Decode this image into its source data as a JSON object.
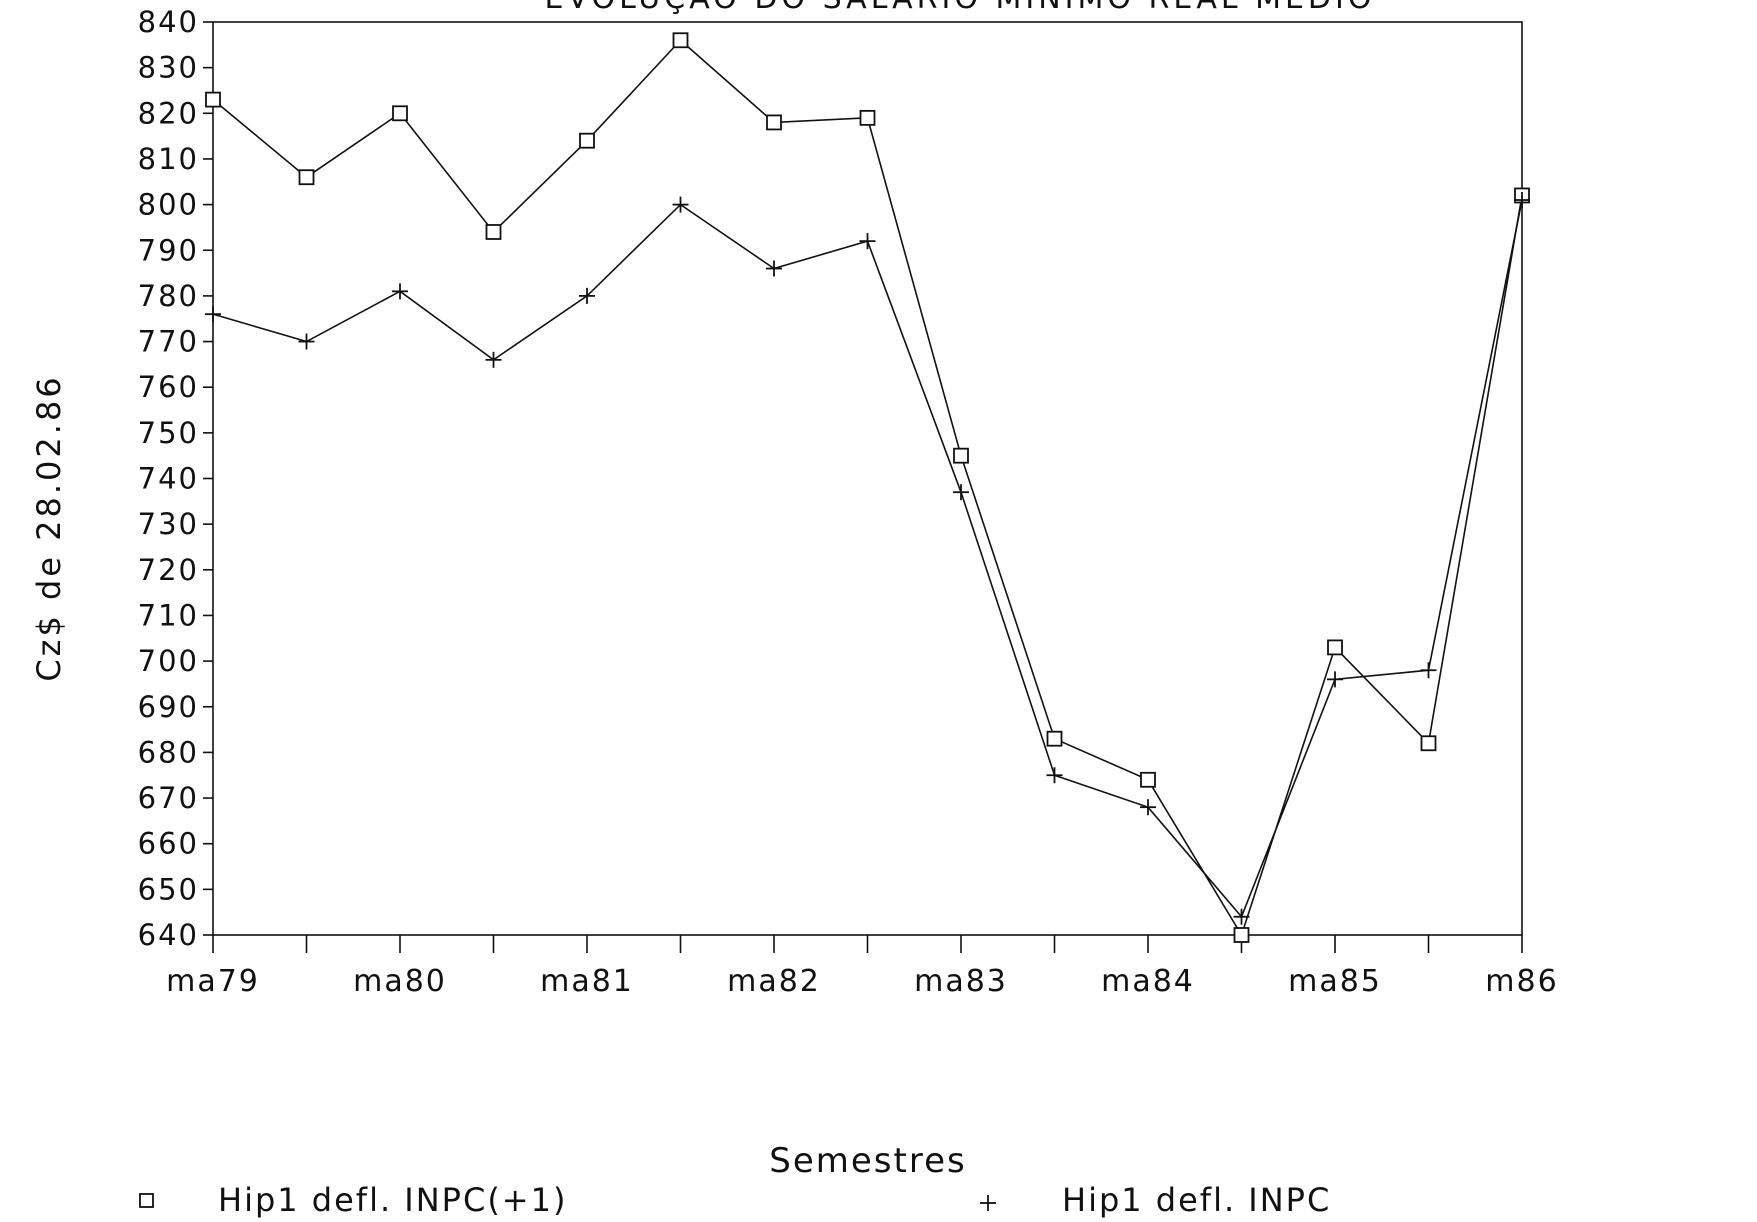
{
  "chart_data": {
    "type": "line",
    "title": "EVOLUÇÃO DO SALÁRIO MÍNIMO REAL MÉDIO",
    "xlabel": "Semestres",
    "ylabel": "Cz$ de 28.02.86",
    "ylim": [
      640,
      840
    ],
    "yticks": [
      640,
      650,
      660,
      670,
      680,
      690,
      700,
      710,
      720,
      730,
      740,
      750,
      760,
      770,
      780,
      790,
      800,
      810,
      820,
      830,
      840
    ],
    "x_tick_labels": [
      "ma79",
      "",
      "ma80",
      "",
      "ma81",
      "",
      "ma82",
      "",
      "ma83",
      "",
      "ma84",
      "",
      "ma85",
      "",
      "m86"
    ],
    "grid": false,
    "legend_position": "bottom",
    "series": [
      {
        "name": "Hip1 defl. INPC(+1)",
        "marker": "square",
        "values": [
          823,
          806,
          820,
          794,
          814,
          836,
          818,
          819,
          745,
          683,
          674,
          640,
          703,
          682,
          802
        ]
      },
      {
        "name": "Hip1 defl. INPC",
        "marker": "plus",
        "values": [
          776,
          770,
          781,
          766,
          780,
          800,
          786,
          792,
          737,
          675,
          668,
          644,
          696,
          698,
          801
        ]
      }
    ],
    "colors": {
      "line": "#111111",
      "background": "#ffffff"
    }
  }
}
